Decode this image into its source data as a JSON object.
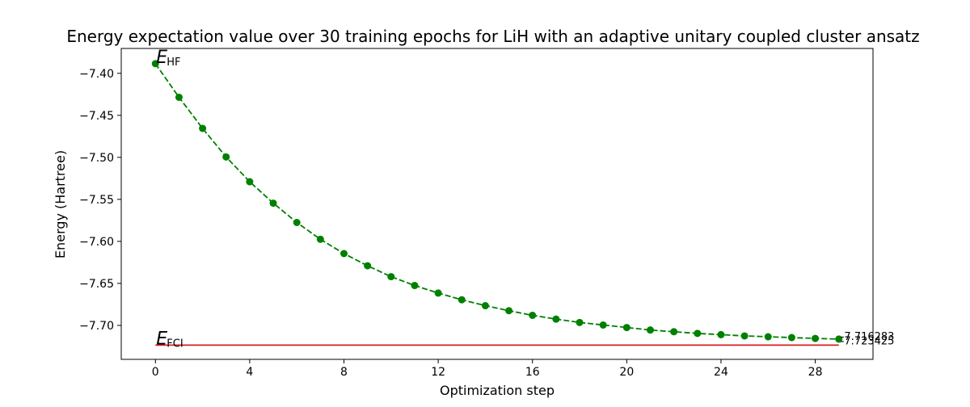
{
  "chart_data": {
    "type": "line",
    "title": "Energy expectation value over 30 training epochs for LiH with an adaptive unitary coupled cluster ansatz",
    "xlabel": "Optimization step",
    "ylabel": "Energy (Hartree)",
    "xlim": [
      -1.45,
      30.45
    ],
    "ylim": [
      -7.7404,
      -7.3704
    ],
    "xticks": [
      0,
      4,
      8,
      12,
      16,
      20,
      24,
      28
    ],
    "yticks": [
      -7.4,
      -7.45,
      -7.5,
      -7.55,
      -7.6,
      -7.65,
      -7.7
    ],
    "ytick_labels": [
      "−7.40",
      "−7.45",
      "−7.50",
      "−7.55",
      "−7.60",
      "−7.65",
      "−7.70"
    ],
    "grid": false,
    "series": [
      {
        "line_style": "dashed",
        "marker": "circle",
        "color": "#008000",
        "x": [
          0,
          1,
          2,
          3,
          4,
          5,
          6,
          7,
          8,
          9,
          10,
          11,
          12,
          13,
          14,
          15,
          16,
          17,
          18,
          19,
          20,
          21,
          22,
          23,
          24,
          25,
          26,
          27,
          28,
          29
        ],
        "y": [
          -7.3885,
          -7.4285,
          -7.4655,
          -7.4995,
          -7.529,
          -7.5545,
          -7.5775,
          -7.5975,
          -7.6145,
          -7.629,
          -7.642,
          -7.6525,
          -7.6615,
          -7.6695,
          -7.6765,
          -7.6825,
          -7.688,
          -7.6925,
          -7.6965,
          -7.6995,
          -7.7025,
          -7.7055,
          -7.7075,
          -7.7095,
          -7.711,
          -7.7125,
          -7.7135,
          -7.7145,
          -7.7155,
          -7.716283
        ]
      },
      {
        "line_style": "solid",
        "marker": "none",
        "color": "#d62020",
        "x": [
          0,
          29
        ],
        "y": [
          -7.723425,
          -7.723425
        ]
      }
    ],
    "annotations": {
      "hf_main": "E",
      "hf_sub": "HF",
      "fci_main": "E",
      "fci_sub": "FCI",
      "final_value": "-7.716283",
      "fci_value": "-7.723425"
    }
  }
}
